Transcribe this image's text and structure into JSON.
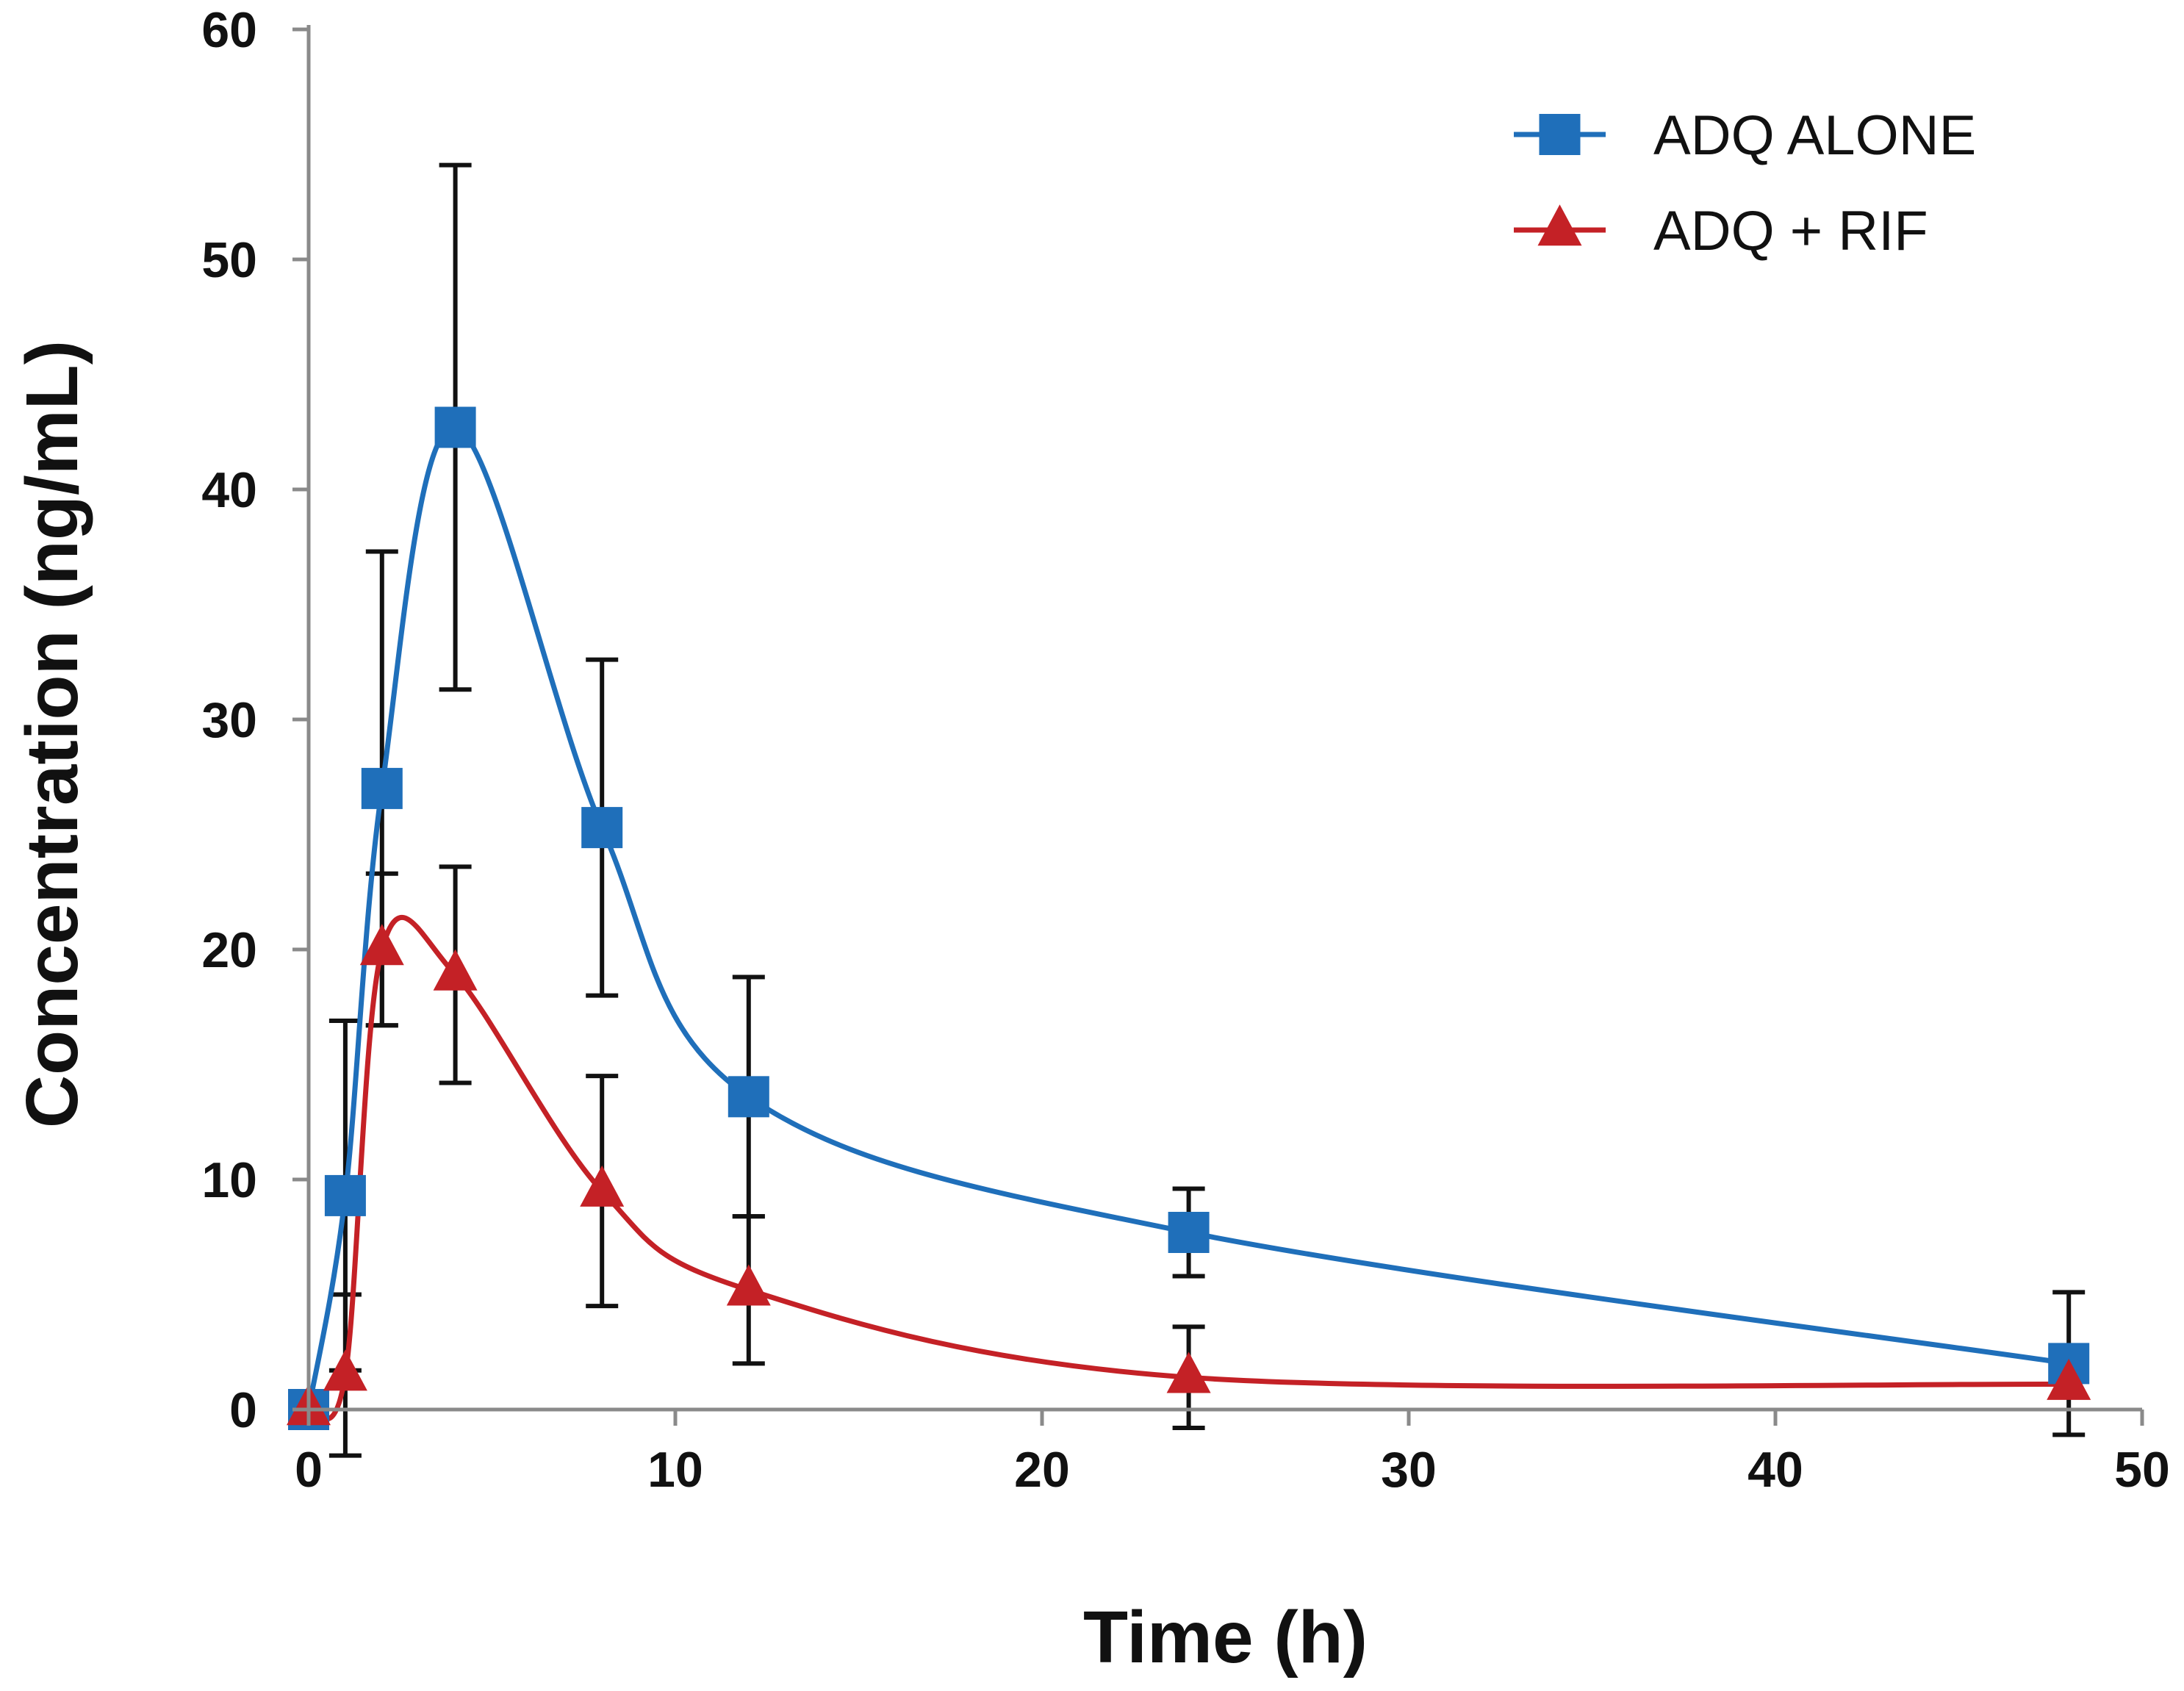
{
  "chart_data": {
    "type": "line",
    "title": "",
    "xlabel": "Time (h)",
    "ylabel": "Concentration (ng/mL)",
    "xlim": [
      0,
      50
    ],
    "ylim": [
      0,
      60
    ],
    "x_ticks": [
      0,
      10,
      20,
      30,
      40,
      50
    ],
    "y_ticks": [
      0,
      10,
      20,
      30,
      40,
      50,
      60
    ],
    "grid": false,
    "legend_position": "top-right",
    "smooth": true,
    "series": [
      {
        "name": "ADQ ALONE",
        "color": "#1f6fba",
        "marker": "square",
        "points": [
          {
            "x": 0,
            "y": 0,
            "err": 0
          },
          {
            "x": 1,
            "y": 9.3,
            "err": 7.6
          },
          {
            "x": 2,
            "y": 27,
            "err": 10.3
          },
          {
            "x": 4,
            "y": 42.7,
            "err": 11.4
          },
          {
            "x": 8,
            "y": 25.3,
            "err": 7.3
          },
          {
            "x": 12,
            "y": 13.6,
            "err": 5.2
          },
          {
            "x": 24,
            "y": 7.7,
            "err": 1.9
          },
          {
            "x": 48,
            "y": 2.0,
            "err": 3.1
          }
        ]
      },
      {
        "name": "ADQ + RIF",
        "color": "#c42126",
        "marker": "triangle",
        "points": [
          {
            "x": 0,
            "y": 0,
            "err": 0
          },
          {
            "x": 1,
            "y": 1.5,
            "err": 3.5
          },
          {
            "x": 2,
            "y": 20,
            "err": 3.3
          },
          {
            "x": 4,
            "y": 18.9,
            "err": 4.7
          },
          {
            "x": 8,
            "y": 9.5,
            "err": 5.0
          },
          {
            "x": 12,
            "y": 5.2,
            "err": 3.2
          },
          {
            "x": 24,
            "y": 1.4,
            "err": 2.2
          },
          {
            "x": 48,
            "y": 1.1,
            "err": 0
          }
        ]
      }
    ]
  }
}
